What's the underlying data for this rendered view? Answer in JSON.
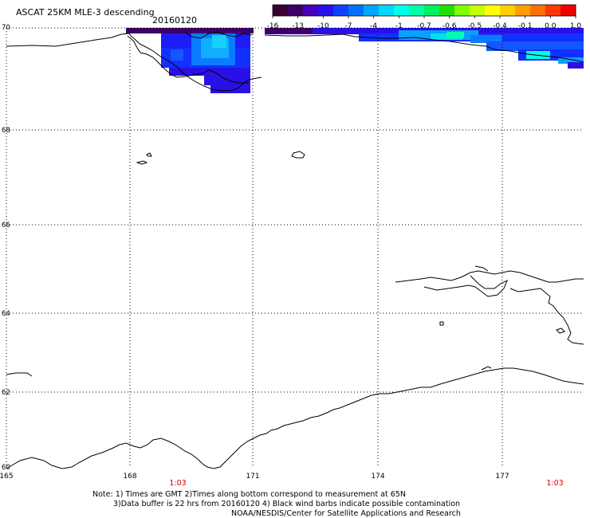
{
  "header": {
    "title": "ASCAT 25KM MLE-3 descending",
    "date": "20160120"
  },
  "colorbar": {
    "labels": [
      "-16",
      "-13",
      "-10",
      "-7",
      "-4",
      "-1",
      "-0.7",
      "-0.6",
      "-0.5",
      "-0.4",
      "-0.1",
      "0.0",
      "1.0"
    ],
    "colors": [
      "#3a0030",
      "#3c0068",
      "#4a00b8",
      "#2a10e8",
      "#1040ff",
      "#0070ff",
      "#00a8ff",
      "#00d8ff",
      "#00ffe8",
      "#00ffa8",
      "#00f060",
      "#20e000",
      "#80ff00",
      "#c8ff00",
      "#ffff00",
      "#ffd000",
      "#ffa000",
      "#ff7000",
      "#ff3800",
      "#f00000"
    ]
  },
  "map": {
    "lat_labels": [
      "70",
      "68",
      "66",
      "64",
      "62",
      "60"
    ],
    "lon_labels": [
      "165",
      "168",
      "171",
      "174",
      "177"
    ],
    "time_labels": [
      "1:03",
      "1:03"
    ],
    "time_color": "#cc0000"
  },
  "notes": [
    "Note: 1) Times are GMT 2)Times along bottom correspond to measurement at 65N",
    "3)Data buffer is 22 hrs from 20160120 4) Black wind barbs indicate possible contamination",
    "NOAA/NESDIS/Center for Satellite Applications and Research"
  ]
}
